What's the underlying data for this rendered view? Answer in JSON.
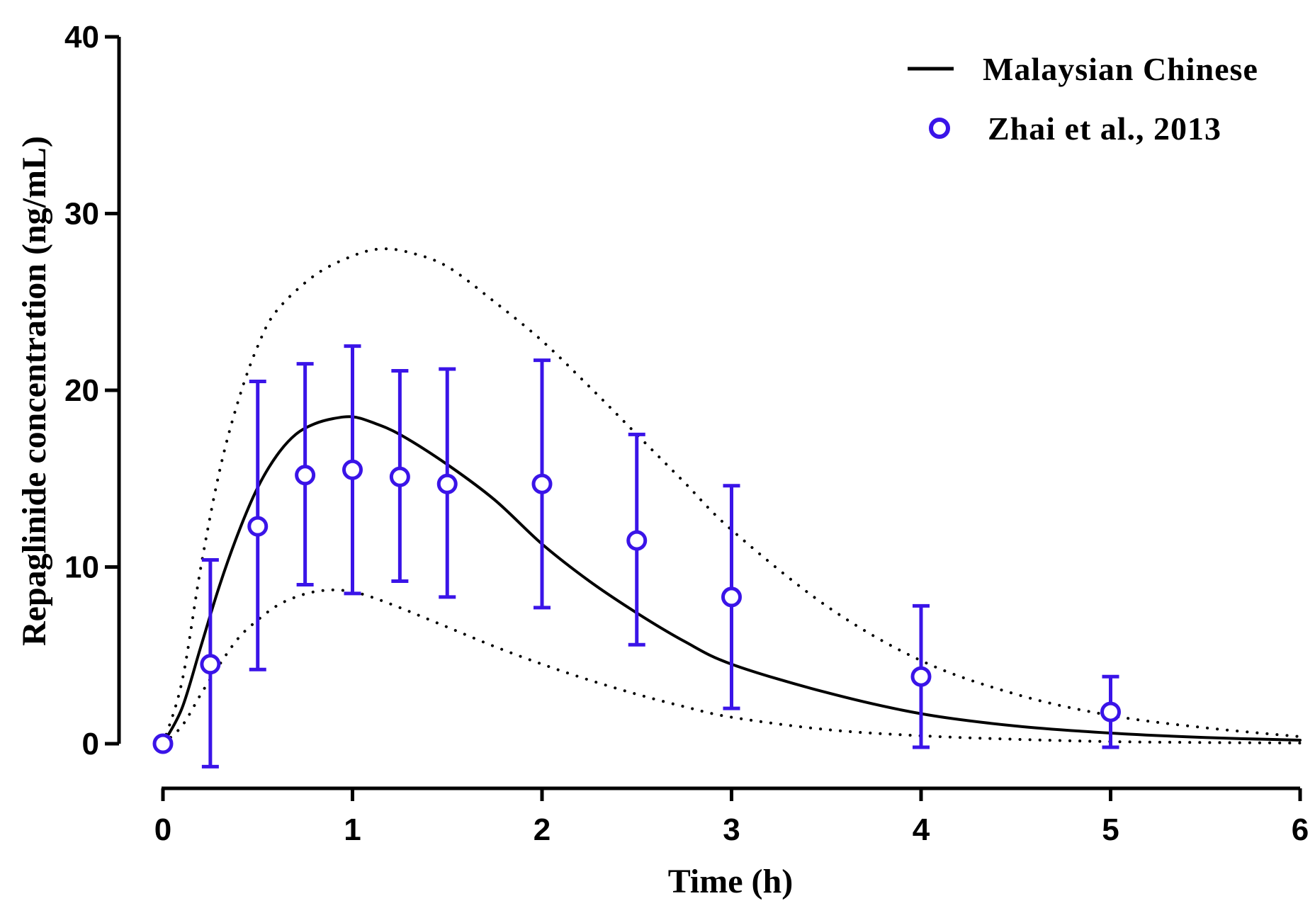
{
  "chart_data": {
    "type": "line",
    "title": "",
    "xlabel": "Time (h)",
    "ylabel": "Repaglinide concentration (ng/mL)",
    "xlim": [
      0,
      6
    ],
    "ylim": [
      0,
      40
    ],
    "xticks": [
      "0",
      "1",
      "2",
      "3",
      "4",
      "5",
      "6"
    ],
    "yticks": [
      "0",
      "10",
      "20",
      "30",
      "40"
    ],
    "grid": false,
    "legend_position": "top-right",
    "legend": [
      {
        "label": "Malaysian Chinese",
        "marker": "line"
      },
      {
        "label": "Zhai et al., 2013",
        "marker": "open-circle"
      }
    ],
    "series": [
      {
        "name": "Malaysian Chinese",
        "style": "solid",
        "color": "#000000",
        "x": [
          0,
          0.1,
          0.2,
          0.3,
          0.4,
          0.5,
          0.6,
          0.7,
          0.8,
          0.9,
          1.0,
          1.1,
          1.25,
          1.5,
          1.75,
          2.0,
          2.25,
          2.5,
          2.75,
          3.0,
          3.5,
          4.0,
          4.5,
          5.0,
          5.5,
          6.0
        ],
        "y": [
          0,
          2.0,
          5.5,
          9.0,
          12.0,
          14.5,
          16.3,
          17.5,
          18.1,
          18.4,
          18.5,
          18.2,
          17.5,
          15.8,
          13.8,
          11.3,
          9.2,
          7.4,
          5.8,
          4.5,
          2.9,
          1.7,
          1.0,
          0.6,
          0.35,
          0.2
        ]
      },
      {
        "name": "Upper bound",
        "style": "dotted",
        "color": "#000000",
        "x": [
          0,
          0.1,
          0.2,
          0.3,
          0.4,
          0.5,
          0.6,
          0.8,
          1.0,
          1.15,
          1.3,
          1.5,
          1.75,
          2.0,
          2.25,
          2.5,
          2.75,
          3.0,
          3.5,
          4.0,
          4.5,
          5.0,
          5.5,
          6.0
        ],
        "y": [
          0,
          3.5,
          10.0,
          15.5,
          19.5,
          22.5,
          24.5,
          26.5,
          27.6,
          28.0,
          27.8,
          27.0,
          25.0,
          22.8,
          20.2,
          17.5,
          14.8,
          12.1,
          7.8,
          4.7,
          2.8,
          1.6,
          0.9,
          0.4
        ]
      },
      {
        "name": "Lower bound",
        "style": "dotted",
        "color": "#000000",
        "x": [
          0,
          0.1,
          0.2,
          0.3,
          0.4,
          0.5,
          0.6,
          0.7,
          0.8,
          0.9,
          1.0,
          1.1,
          1.25,
          1.5,
          1.75,
          2.0,
          2.25,
          2.5,
          2.75,
          3.0,
          3.5,
          4.0,
          4.5,
          5.0,
          5.5,
          6.0
        ],
        "y": [
          0,
          1.0,
          2.8,
          4.5,
          6.0,
          7.0,
          7.8,
          8.3,
          8.6,
          8.7,
          8.6,
          8.3,
          7.7,
          6.6,
          5.5,
          4.5,
          3.6,
          2.8,
          2.1,
          1.5,
          0.8,
          0.45,
          0.25,
          0.12,
          0.07,
          0.04
        ]
      },
      {
        "name": "Zhai et al., 2013",
        "style": "markers",
        "color": "#3a14e8",
        "x": [
          0,
          0.25,
          0.5,
          0.75,
          1.0,
          1.25,
          1.5,
          2.0,
          2.5,
          3.0,
          4.0,
          5.0
        ],
        "y": [
          0,
          4.5,
          12.3,
          15.2,
          15.5,
          15.1,
          14.7,
          14.7,
          11.5,
          8.3,
          3.8,
          1.8
        ],
        "error_low": [
          0,
          -1.3,
          4.2,
          9.0,
          8.5,
          9.2,
          8.3,
          7.7,
          5.6,
          2.0,
          -0.2,
          -0.2
        ],
        "error_high": [
          0,
          10.4,
          20.5,
          21.5,
          22.5,
          21.1,
          21.2,
          21.7,
          17.5,
          14.6,
          7.8,
          3.8
        ]
      }
    ]
  }
}
